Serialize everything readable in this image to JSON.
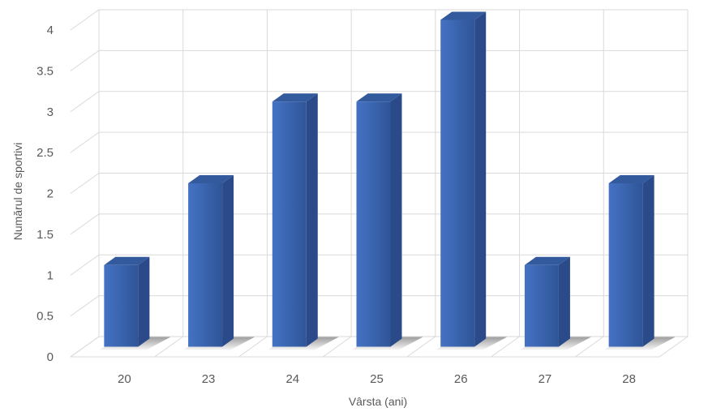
{
  "chart_data": {
    "type": "bar",
    "title": "",
    "xlabel": "Vârsta (ani)",
    "ylabel": "Numărul de sportivi",
    "categories": [
      "20",
      "23",
      "24",
      "25",
      "26",
      "27",
      "28"
    ],
    "values": [
      1,
      2,
      3,
      3,
      4,
      1,
      2
    ],
    "ylim": [
      0,
      4
    ],
    "yticks": [
      "0",
      "0.5",
      "1",
      "1.5",
      "2",
      "2.5",
      "3",
      "3.5",
      "4"
    ],
    "grid": true,
    "style": "3d-column",
    "colors": {
      "bar_front": "#4472c4",
      "bar_front_dark": "#2f5597",
      "bar_side": "#2b4a8a",
      "bar_top": "#345a9e",
      "grid": "#d9d9d9",
      "text": "#595959"
    }
  }
}
